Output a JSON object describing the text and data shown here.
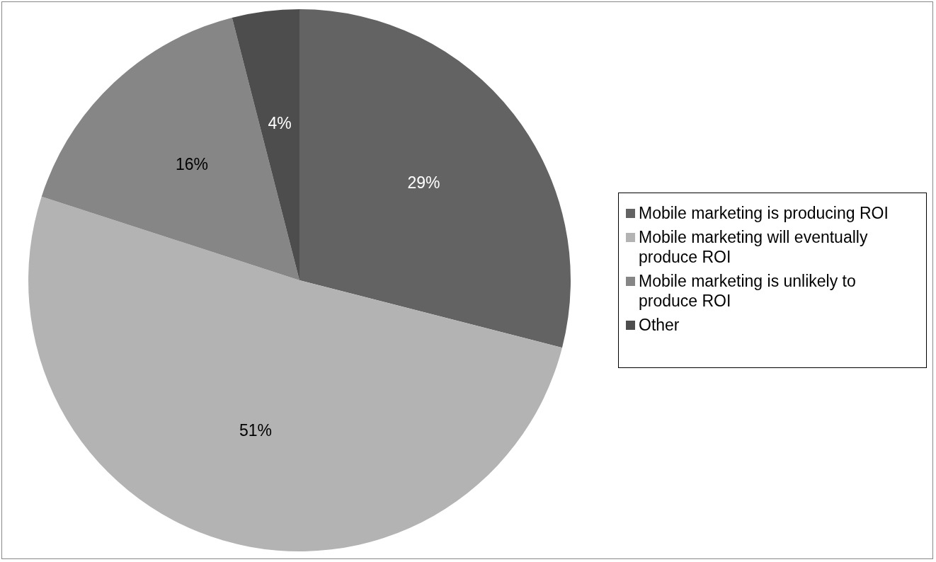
{
  "chart_data": {
    "type": "pie",
    "categories": [
      "Mobile marketing is producing ROI",
      "Mobile marketing will eventually produce ROI",
      "Mobile marketing is unlikely to produce ROI",
      "Other"
    ],
    "values": [
      29,
      51,
      16,
      4
    ],
    "colors": [
      "#636363",
      "#b3b3b3",
      "#868686",
      "#4d4d4d"
    ],
    "value_labels": [
      "29%",
      "51%",
      "16%",
      "4%"
    ],
    "legend": "right"
  }
}
